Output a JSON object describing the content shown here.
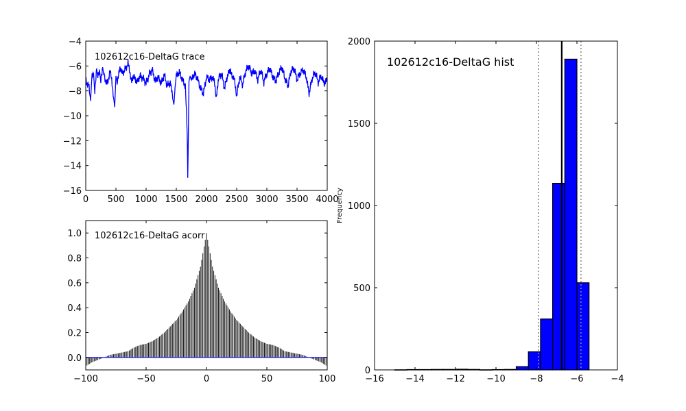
{
  "chart_data": [
    {
      "type": "line",
      "title": "102612c16-DeltaG trace",
      "xlim": [
        0,
        4000
      ],
      "ylim": [
        -16,
        -4
      ],
      "xticks": [
        0,
        500,
        1000,
        1500,
        2000,
        2500,
        3000,
        3500,
        4000
      ],
      "yticks": [
        -16,
        -14,
        -12,
        -10,
        -8,
        -6,
        -4
      ],
      "x": [
        0,
        50,
        80,
        100,
        130,
        150,
        180,
        200,
        230,
        250,
        280,
        300,
        350,
        400,
        430,
        460,
        480,
        500,
        520,
        560,
        600,
        650,
        700,
        730,
        760,
        800,
        850,
        900,
        950,
        1000,
        1050,
        1100,
        1150,
        1200,
        1250,
        1300,
        1350,
        1400,
        1440,
        1460,
        1480,
        1500,
        1550,
        1600,
        1650,
        1680,
        1690,
        1700,
        1710,
        1730,
        1750,
        1800,
        1850,
        1900,
        1950,
        2000,
        2050,
        2100,
        2130,
        2160,
        2200,
        2250,
        2300,
        2350,
        2400,
        2430,
        2460,
        2500,
        2550,
        2600,
        2650,
        2700,
        2750,
        2800,
        2850,
        2900,
        2950,
        3000,
        3050,
        3100,
        3150,
        3200,
        3250,
        3300,
        3350,
        3400,
        3450,
        3500,
        3550,
        3600,
        3650,
        3700,
        3750,
        3800,
        3850,
        3900,
        3950,
        4000
      ],
      "y": [
        -7.2,
        -7.6,
        -8.8,
        -7.0,
        -6.6,
        -8.2,
        -6.2,
        -6.9,
        -6.4,
        -7.3,
        -6.1,
        -6.7,
        -7.5,
        -6.5,
        -7.0,
        -8.5,
        -9.3,
        -6.8,
        -7.2,
        -6.2,
        -6.6,
        -6.3,
        -5.8,
        -6.5,
        -7.1,
        -6.9,
        -7.3,
        -6.8,
        -7.0,
        -7.4,
        -6.7,
        -6.3,
        -7.2,
        -6.9,
        -7.4,
        -6.7,
        -7.6,
        -7.3,
        -8.6,
        -9.1,
        -7.7,
        -6.8,
        -6.5,
        -7.1,
        -7.6,
        -11.3,
        -15.0,
        -11.5,
        -7.2,
        -6.8,
        -7.2,
        -6.6,
        -7.0,
        -7.8,
        -8.2,
        -6.9,
        -7.1,
        -6.9,
        -7.3,
        -8.4,
        -7.0,
        -6.6,
        -7.8,
        -6.7,
        -6.3,
        -7.1,
        -6.8,
        -8.4,
        -6.9,
        -7.5,
        -6.4,
        -6.0,
        -6.6,
        -6.4,
        -7.1,
        -6.3,
        -7.3,
        -6.6,
        -6.2,
        -6.9,
        -7.2,
        -6.5,
        -6.1,
        -7.0,
        -7.6,
        -6.4,
        -6.2,
        -7.1,
        -6.6,
        -6.3,
        -6.8,
        -8.2,
        -7.0,
        -6.5,
        -7.3,
        -6.8,
        -7.4,
        -7.1
      ]
    },
    {
      "type": "bar",
      "title": "102612c16-DeltaG acorr",
      "xlim": [
        -100,
        100
      ],
      "ylim": [
        -0.1,
        1.1
      ],
      "xticks": [
        -100,
        -50,
        0,
        50,
        100
      ],
      "yticks": [
        0.0,
        0.2,
        0.4,
        0.6,
        0.8,
        1.0
      ],
      "baseline": 0.0,
      "lag_range": [
        -100,
        100
      ],
      "profile_lags": [
        0,
        5,
        10,
        15,
        20,
        25,
        30,
        35,
        40,
        45,
        50,
        55,
        60,
        65,
        70,
        75,
        80,
        85,
        90,
        95,
        100
      ],
      "profile_values": [
        1.0,
        0.73,
        0.56,
        0.45,
        0.37,
        0.3,
        0.25,
        0.2,
        0.16,
        0.13,
        0.11,
        0.1,
        0.08,
        0.05,
        0.04,
        0.03,
        0.02,
        0.0,
        -0.02,
        -0.04,
        -0.07
      ]
    },
    {
      "type": "histogram",
      "title": "102612c16-DeltaG hist",
      "xlabel": "",
      "ylabel": "Frequency",
      "xlim": [
        -16,
        -4
      ],
      "ylim": [
        0,
        2000
      ],
      "xticks": [
        -16,
        -14,
        -12,
        -10,
        -8,
        -6,
        -4
      ],
      "yticks": [
        0,
        500,
        1000,
        1500,
        2000
      ],
      "bin_edges": [
        -15.0,
        -14.4,
        -13.8,
        -13.2,
        -12.6,
        -12.0,
        -11.4,
        -10.8,
        -10.2,
        -9.6,
        -9.0,
        -8.4,
        -7.8,
        -7.2,
        -6.6,
        -6.0,
        -5.4
      ],
      "counts": [
        1,
        2,
        2,
        3,
        3,
        4,
        3,
        1,
        2,
        3,
        20,
        110,
        310,
        1135,
        1890,
        530
      ],
      "mean_line": -6.75,
      "sd_lines": [
        -7.9,
        -5.8
      ]
    }
  ]
}
